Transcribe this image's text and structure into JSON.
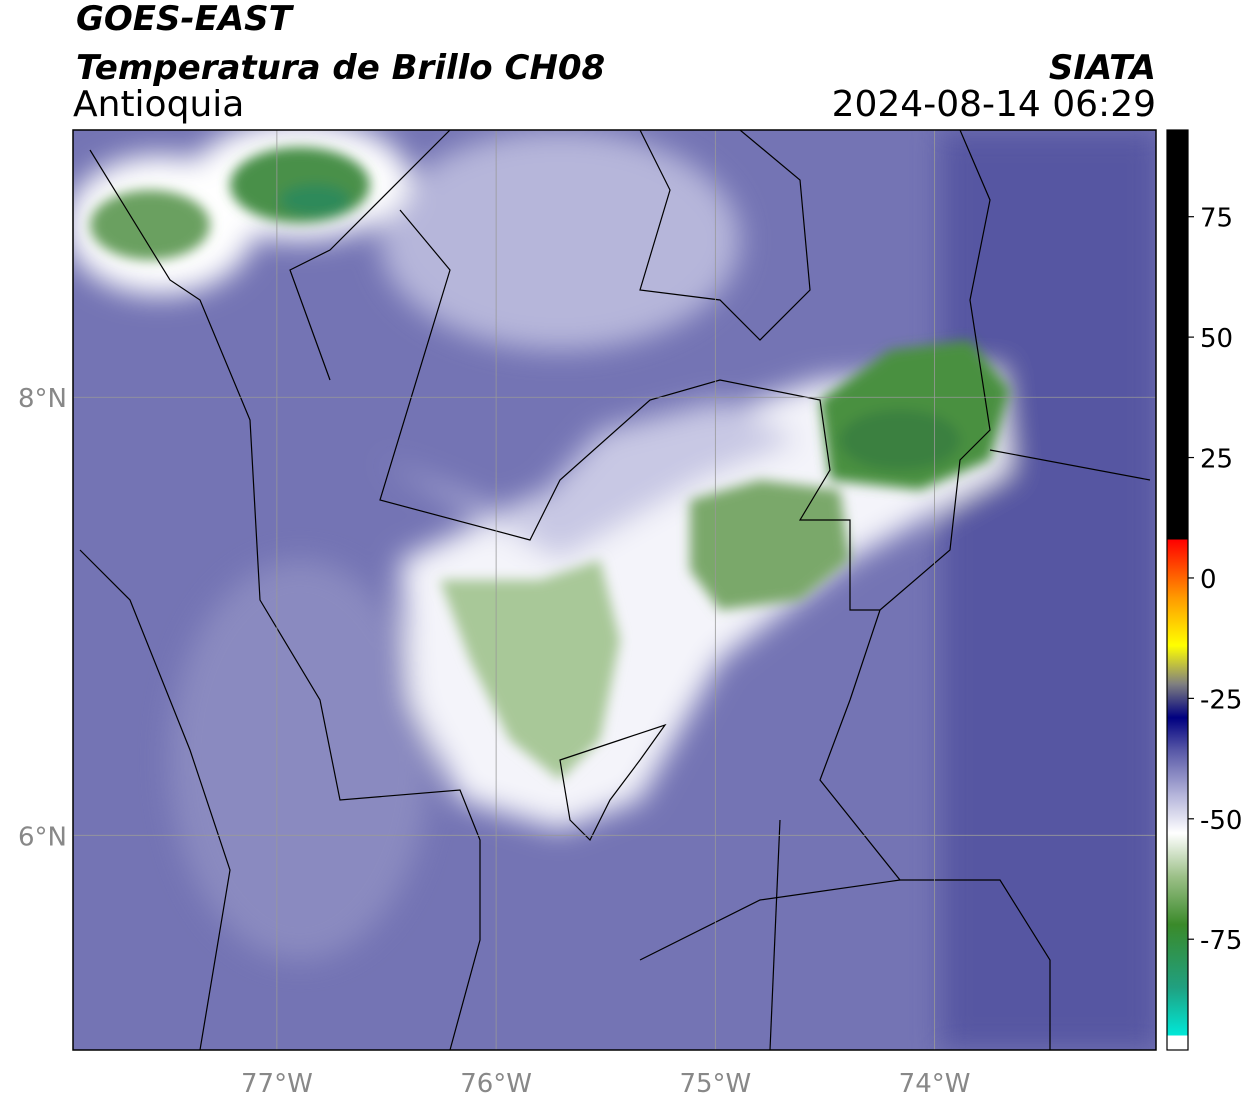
{
  "header": {
    "title": "GOES-EAST",
    "subtitle": "Temperatura de Brillo CH08",
    "region": "Antioquia",
    "source": "SIATA",
    "datetime": "2024-08-14 06:29"
  },
  "map": {
    "xlim": [
      -77.93,
      -72.99
    ],
    "ylim": [
      5.02,
      9.22
    ],
    "xticks": [
      {
        "value": -77,
        "label": "77°W"
      },
      {
        "value": -76,
        "label": "76°W"
      },
      {
        "value": -75,
        "label": "75°W"
      },
      {
        "value": -74,
        "label": "74°W"
      }
    ],
    "yticks": [
      {
        "value": 6,
        "label": "6°N"
      },
      {
        "value": 8,
        "label": "8°N"
      }
    ],
    "grid": true
  },
  "colorbar": {
    "lim": [
      -98,
      93
    ],
    "ticks": [
      -75,
      -50,
      -25,
      0,
      25,
      50,
      75
    ],
    "colormap": [
      {
        "value": -98,
        "color": "#ffffff"
      },
      {
        "value": -95,
        "color": "#ffffff"
      },
      {
        "value": -95,
        "color": "#00e8d8"
      },
      {
        "value": -85,
        "color": "#20a080"
      },
      {
        "value": -72,
        "color": "#3a8a2a"
      },
      {
        "value": -62,
        "color": "#9cc088"
      },
      {
        "value": -53,
        "color": "#ffffff"
      },
      {
        "value": -45,
        "color": "#b4b4da"
      },
      {
        "value": -36,
        "color": "#5a5aa8"
      },
      {
        "value": -29,
        "color": "#000080"
      },
      {
        "value": -22,
        "color": "#808080"
      },
      {
        "value": -14,
        "color": "#ffff00"
      },
      {
        "value": -4,
        "color": "#ff9900"
      },
      {
        "value": 8,
        "color": "#ff0000"
      },
      {
        "value": 8,
        "color": "#000000"
      },
      {
        "value": 93,
        "color": "#000000"
      }
    ]
  }
}
